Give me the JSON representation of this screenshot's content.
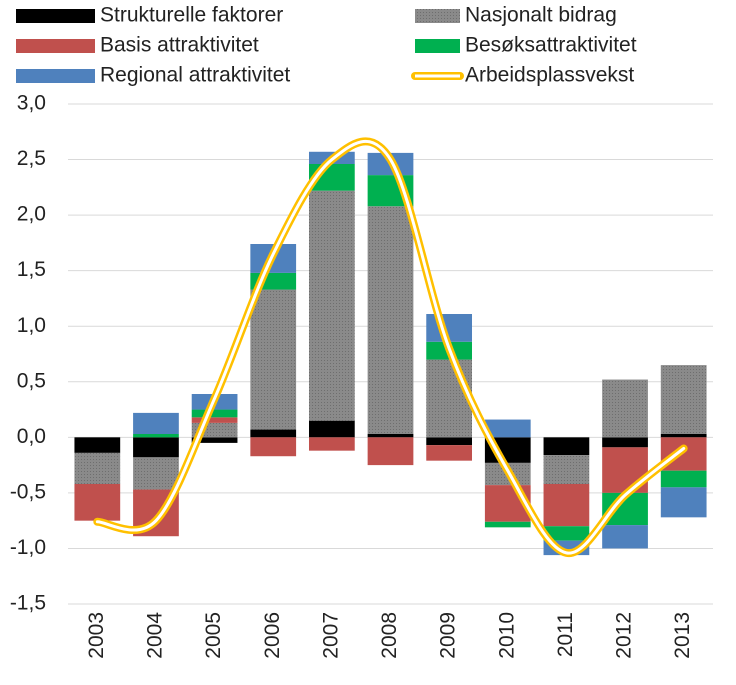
{
  "chart_data": {
    "type": "stacked-bar-line",
    "categories": [
      "2003",
      "2004",
      "2005",
      "2006",
      "2007",
      "2008",
      "2009",
      "2010",
      "2011",
      "2012",
      "2013"
    ],
    "series": [
      {
        "name": "Strukturelle faktorer",
        "color": "#000000",
        "values": [
          -0.14,
          -0.18,
          -0.05,
          0.07,
          0.15,
          0.03,
          -0.07,
          -0.23,
          -0.16,
          -0.09,
          0.03
        ]
      },
      {
        "name": "Nasjonalt bidrag",
        "color": "#8a8a8a",
        "values": [
          -0.28,
          -0.29,
          0.13,
          1.26,
          2.07,
          2.05,
          0.7,
          -0.2,
          -0.26,
          0.52,
          0.62
        ]
      },
      {
        "name": "Basis attraktivitet",
        "color": "#c0504d",
        "values": [
          -0.33,
          -0.42,
          0.05,
          -0.17,
          -0.12,
          -0.25,
          -0.14,
          -0.33,
          -0.38,
          -0.41,
          -0.3
        ]
      },
      {
        "name": "Besøksattraktivitet",
        "color": "#00b050",
        "values": [
          0,
          0.03,
          0.07,
          0.15,
          0.24,
          0.28,
          0.16,
          -0.05,
          -0.13,
          -0.29,
          -0.15
        ]
      },
      {
        "name": "Regional attraktivitet",
        "color": "#4f81bd",
        "values": [
          0,
          0.19,
          0.14,
          0.26,
          0.11,
          0.2,
          0.25,
          0.16,
          -0.13,
          -0.21,
          -0.27
        ]
      },
      {
        "name": "Arbeidsplassvekst",
        "type": "line",
        "color": "#ffc000",
        "values": [
          -0.76,
          -0.75,
          0.35,
          1.65,
          2.5,
          2.5,
          0.8,
          -0.3,
          -1.04,
          -0.52,
          -0.1
        ]
      }
    ],
    "ylim": [
      -1.5,
      3.0
    ],
    "yticks": [
      {
        "value": -1.5,
        "label": "-1,5"
      },
      {
        "value": -1.0,
        "label": "-1,0"
      },
      {
        "value": -0.5,
        "label": "-0,5"
      },
      {
        "value": 0,
        "label": "0,0"
      },
      {
        "value": 0.5,
        "label": "0,5"
      },
      {
        "value": 1.0,
        "label": "1,0"
      },
      {
        "value": 1.5,
        "label": "1,5"
      },
      {
        "value": 2.0,
        "label": "2,0"
      },
      {
        "value": 2.5,
        "label": "2,5"
      },
      {
        "value": 3.0,
        "label": "3,0"
      }
    ],
    "grid": true,
    "legend": "top"
  }
}
